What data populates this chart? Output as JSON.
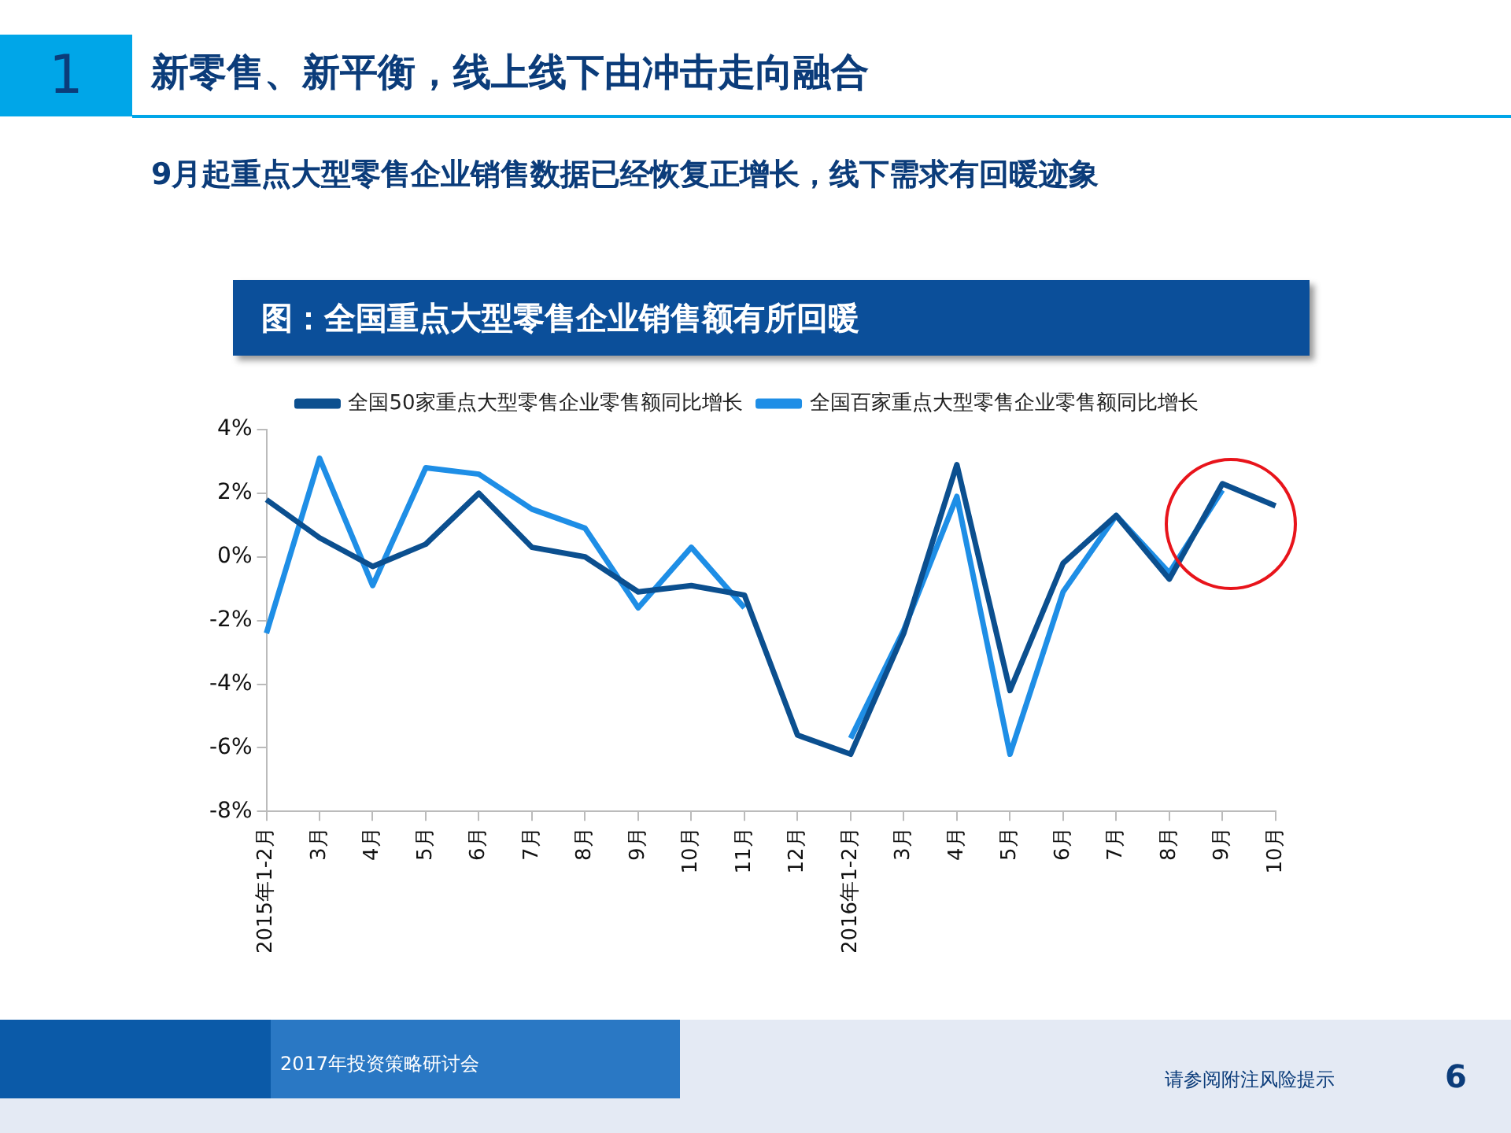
{
  "chart_data": {
    "type": "line",
    "title": "图：全国重点大型零售企业销售额有所回暖",
    "subtitle": "9月起重点大型零售企业销售数据已经恢复正增长，线下需求有回暖迹象",
    "annotations": [
      "1",
      "新零售、新平衡，线上线下由冲击走向融合",
      "2017年投资策略研讨会",
      "请参阅附注风险提示",
      "6"
    ],
    "categories": [
      "2015年1-2月",
      "3月",
      "4月",
      "5月",
      "6月",
      "7月",
      "8月",
      "9月",
      "10月",
      "11月",
      "12月",
      "2016年1-2月",
      "3月",
      "4月",
      "5月",
      "6月",
      "7月",
      "8月",
      "9月",
      "10月"
    ],
    "series": [
      {
        "name": "全国50家重点大型零售企业零售额同比增长",
        "color": "#0b4f8f",
        "values": [
          1.8,
          0.6,
          -0.3,
          0.4,
          2.0,
          0.3,
          0.0,
          -1.1,
          -0.9,
          -1.2,
          -5.6,
          -6.2,
          -2.4,
          2.9,
          -4.2,
          -0.2,
          1.3,
          -0.7,
          2.3,
          1.6
        ]
      },
      {
        "name": "全国百家重点大型零售企业零售额同比增长",
        "color": "#1e8ee6",
        "values": [
          -2.4,
          3.1,
          -0.9,
          2.8,
          2.6,
          1.5,
          0.9,
          -1.6,
          0.3,
          -1.6,
          null,
          -5.7,
          -2.3,
          1.9,
          -6.2,
          -1.1,
          1.3,
          -0.5,
          2.1,
          null
        ]
      }
    ],
    "ylim": [
      -8,
      4
    ],
    "yticks": [
      {
        "value": -8,
        "label": "-8%"
      },
      {
        "value": -6,
        "label": "-6%"
      },
      {
        "value": -4,
        "label": "-4%"
      },
      {
        "value": -2,
        "label": "-2%"
      },
      {
        "value": 0,
        "label": "0%"
      },
      {
        "value": 2,
        "label": "2%"
      },
      {
        "value": 4,
        "label": "4%"
      }
    ],
    "grid": false,
    "legend": "top"
  }
}
